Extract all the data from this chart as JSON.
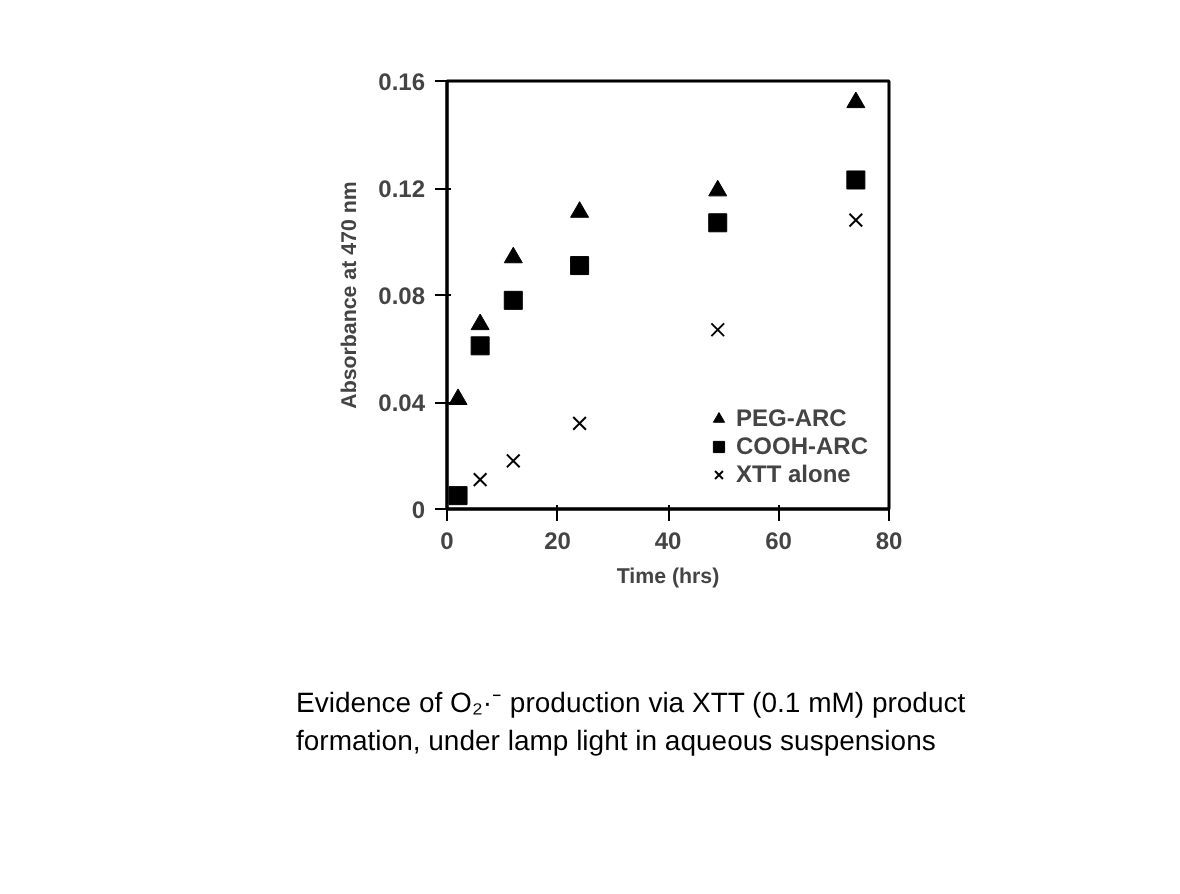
{
  "chart_data": {
    "type": "scatter",
    "xlabel": "Time (hrs)",
    "ylabel": "Absorbance at 470 nm",
    "xlim": [
      0,
      80
    ],
    "xticks": [
      0,
      20,
      40,
      60,
      80
    ],
    "ylim": [
      0,
      0.16
    ],
    "yticks": [
      0,
      0.04,
      0.08,
      0.12,
      0.16
    ],
    "grid": false,
    "legend": "bottom right",
    "series": [
      {
        "name": "PEG-ARC",
        "color": "#000000",
        "marker": "triangle",
        "x": [
          2,
          6,
          12,
          24,
          49,
          74
        ],
        "values": [
          0.041,
          0.069,
          0.094,
          0.111,
          0.119,
          0.152
        ]
      },
      {
        "name": "COOH-ARC",
        "color": "#000000",
        "marker": "square",
        "x": [
          2,
          6,
          12,
          24,
          49,
          74
        ],
        "values": [
          0.005,
          0.061,
          0.078,
          0.091,
          0.107,
          0.123
        ]
      },
      {
        "name": "XTT alone",
        "color": "#000000",
        "marker": "cross",
        "x": [
          6,
          12,
          24,
          49,
          74
        ],
        "values": [
          0.011,
          0.018,
          0.032,
          0.067,
          0.108
        ]
      }
    ],
    "annotations": [
      "Evidence of O₂·⁻ production via XTT (0.1 mM) product\nformation, under lamp light in aqueous suspensions"
    ]
  }
}
